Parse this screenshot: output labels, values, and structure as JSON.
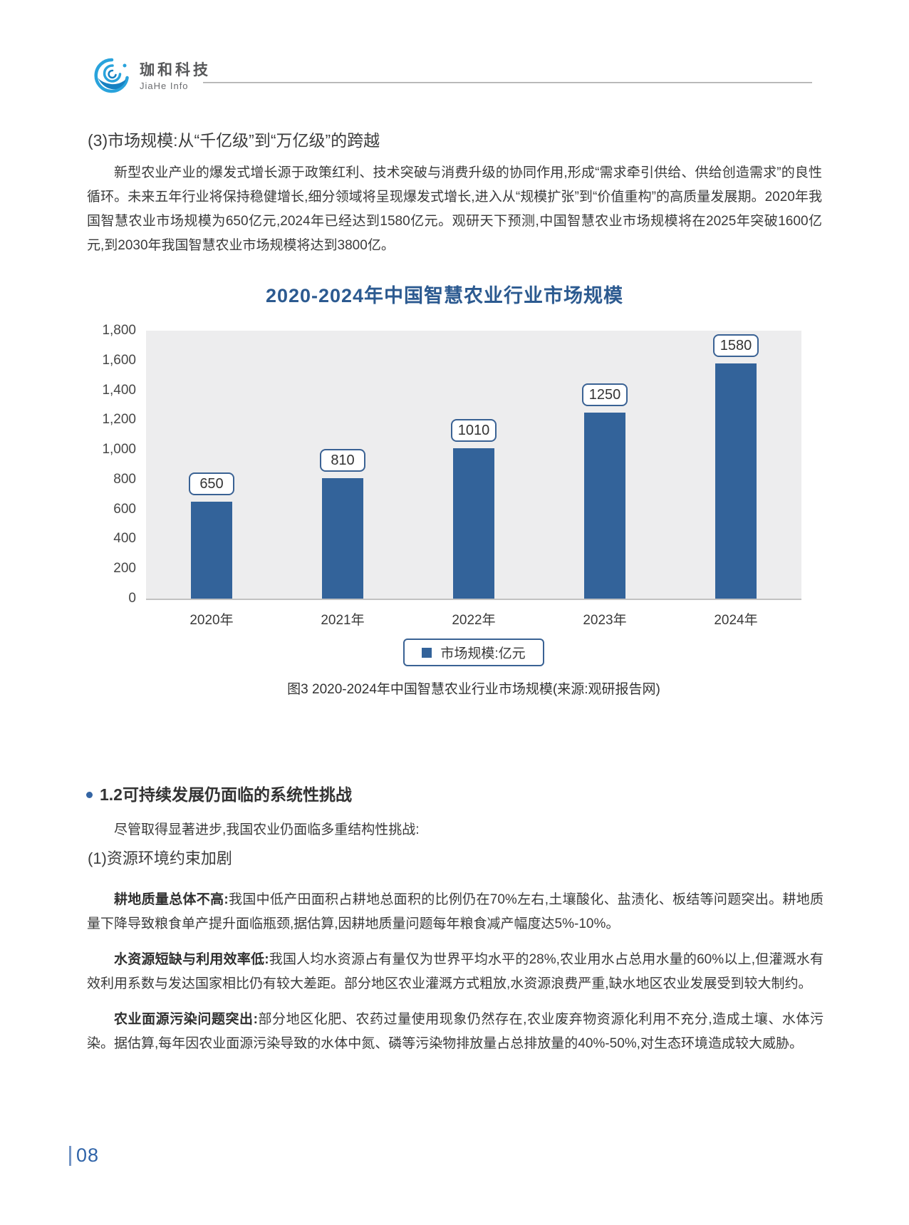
{
  "header": {
    "logo_title": "珈和科技",
    "logo_subtitle": "JiaHe Info"
  },
  "section3": {
    "heading": "(3)市场规模:从“千亿级”到“万亿级”的跨越",
    "paragraph": "新型农业产业的爆发式增长源于政策红利、技术突破与消费升级的协同作用,形成“需求牵引供给、供给创造需求”的良性循环。未来五年行业将保持稳健增长,细分领域将呈现爆发式增长,进入从“规模扩张”到“价值重构”的高质量发展期。2020年我国智慧农业市场规模为650亿元,2024年已经达到1580亿元。观研天下预测,中国智慧农业市场规模将在2025年突破1600亿元,到2030年我国智慧农业市场规模将达到3800亿。"
  },
  "chart_data": {
    "type": "bar",
    "title": "2020-2024年中国智慧农业行业市场规模",
    "categories": [
      "2020年",
      "2021年",
      "2022年",
      "2023年",
      "2024年"
    ],
    "values": [
      650,
      810,
      1010,
      1250,
      1580
    ],
    "series_name": "市场规模:亿元",
    "xlabel": "",
    "ylabel": "",
    "ylim": [
      0,
      1800
    ],
    "ytick_step": 200,
    "yticks_labels": [
      "0",
      "200",
      "400",
      "600",
      "800",
      "1,000",
      "1,200",
      "1,400",
      "1,600",
      "1,800"
    ],
    "grid": false,
    "legend_position": "bottom",
    "legend_label": "市场规模:亿元",
    "bar_color": "#33639a",
    "plot_bg": "#ededee",
    "caption": "图3 2020-2024年中国智慧农业行业市场规模(来源:观研报告网)"
  },
  "section12": {
    "heading": "1.2可持续发展仍面临的系统性挑战",
    "intro": "尽管取得显著进步,我国农业仍面临多重结构性挑战:",
    "sub1_heading": "(1)资源环境约束加剧",
    "paragraphs": [
      {
        "lead": "耕地质量总体不高:",
        "text": "我国中低产田面积占耕地总面积的比例仍在70%左右,土壤酸化、盐渍化、板结等问题突出。耕地质量下降导致粮食单产提升面临瓶颈,据估算,因耕地质量问题每年粮食减产幅度达5%-10%。"
      },
      {
        "lead": "水资源短缺与利用效率低:",
        "text": "我国人均水资源占有量仅为世界平均水平的28%,农业用水占总用水量的60%以上,但灌溉水有效利用系数与发达国家相比仍有较大差距。部分地区农业灌溉方式粗放,水资源浪费严重,缺水地区农业发展受到较大制约。"
      },
      {
        "lead": "农业面源污染问题突出:",
        "text": "部分地区化肥、农药过量使用现象仍然存在,农业废弃物资源化利用不充分,造成土壤、水体污染。据估算,每年因农业面源污染导致的水体中氮、磷等污染物排放量占总排放量的40%-50%,对生态环境造成较大威胁。"
      }
    ]
  },
  "footer": {
    "page_number": "08"
  }
}
